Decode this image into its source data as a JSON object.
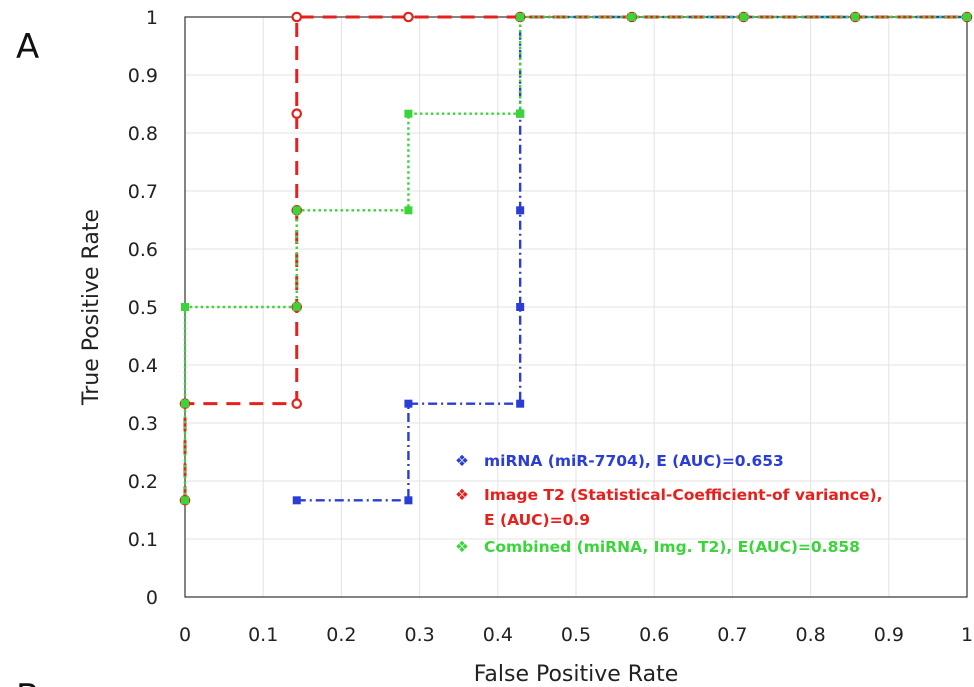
{
  "panel_labels": {
    "top": "A",
    "bottom_partial": "B"
  },
  "chart_data": {
    "type": "line",
    "title": "",
    "xlabel": "False Positive Rate",
    "ylabel": "True Positive Rate",
    "xlim": [
      0,
      1
    ],
    "ylim": [
      0,
      1
    ],
    "xticks": [
      "0",
      "0.1",
      "0.2",
      "0.3",
      "0.4",
      "0.5",
      "0.6",
      "0.7",
      "0.8",
      "0.9",
      "1"
    ],
    "yticks": [
      "0",
      "0.1",
      "0.2",
      "0.3",
      "0.4",
      "0.5",
      "0.6",
      "0.7",
      "0.8",
      "0.9",
      "1"
    ],
    "grid": true,
    "legend_position": "bottom-right",
    "series": [
      {
        "name": "miRNA (miR-7704), E (AUC)=0.653",
        "legend_lines": [
          "miRNA (miR-7704), E (AUC)=0.653"
        ],
        "color": "#2a3dd6",
        "style": "dash-dot",
        "marker": "square",
        "points": [
          [
            0.1429,
            0.1667
          ],
          [
            0.2857,
            0.1667
          ],
          [
            0.2857,
            0.3333
          ],
          [
            0.4286,
            0.3333
          ],
          [
            0.4286,
            0.5
          ],
          [
            0.4286,
            0.6667
          ],
          [
            0.4286,
            0.8333
          ],
          [
            0.4286,
            1.0
          ],
          [
            0.5714,
            1.0
          ],
          [
            0.7143,
            1.0
          ],
          [
            0.8571,
            1.0
          ],
          [
            1.0,
            1.0
          ]
        ]
      },
      {
        "name": "Image T2 (Statistical-Coefficient-of variance), E (AUC)=0.9",
        "legend_lines": [
          "Image T2 (Statistical-Coefficient-of variance),",
          "E (AUC)=0.9"
        ],
        "color": "#e8201c",
        "style": "dashed",
        "marker": "circle",
        "points": [
          [
            0,
            0.1667
          ],
          [
            0,
            0.3333
          ],
          [
            0.1429,
            0.3333
          ],
          [
            0.1429,
            0.5
          ],
          [
            0.1429,
            0.6667
          ],
          [
            0.1429,
            0.8333
          ],
          [
            0.1429,
            1.0
          ],
          [
            0.2857,
            1.0
          ],
          [
            0.4286,
            1.0
          ],
          [
            0.5714,
            1.0
          ],
          [
            0.7143,
            1.0
          ],
          [
            0.8571,
            1.0
          ],
          [
            1.0,
            1.0
          ]
        ]
      },
      {
        "name": "Combined  (miRNA, Img. T2), E(AUC)=0.858",
        "legend_lines": [
          "Combined  (miRNA, Img. T2), E(AUC)=0.858"
        ],
        "color": "#3bd43b",
        "style": "dotted",
        "marker": "square",
        "points": [
          [
            0,
            0.1667
          ],
          [
            0,
            0.3333
          ],
          [
            0,
            0.5
          ],
          [
            0.1429,
            0.5
          ],
          [
            0.1429,
            0.6667
          ],
          [
            0.2857,
            0.6667
          ],
          [
            0.2857,
            0.8333
          ],
          [
            0.4286,
            0.8333
          ],
          [
            0.4286,
            1.0
          ],
          [
            0.5714,
            1.0
          ],
          [
            0.7143,
            1.0
          ],
          [
            0.8571,
            1.0
          ],
          [
            1.0,
            1.0
          ]
        ]
      }
    ]
  }
}
